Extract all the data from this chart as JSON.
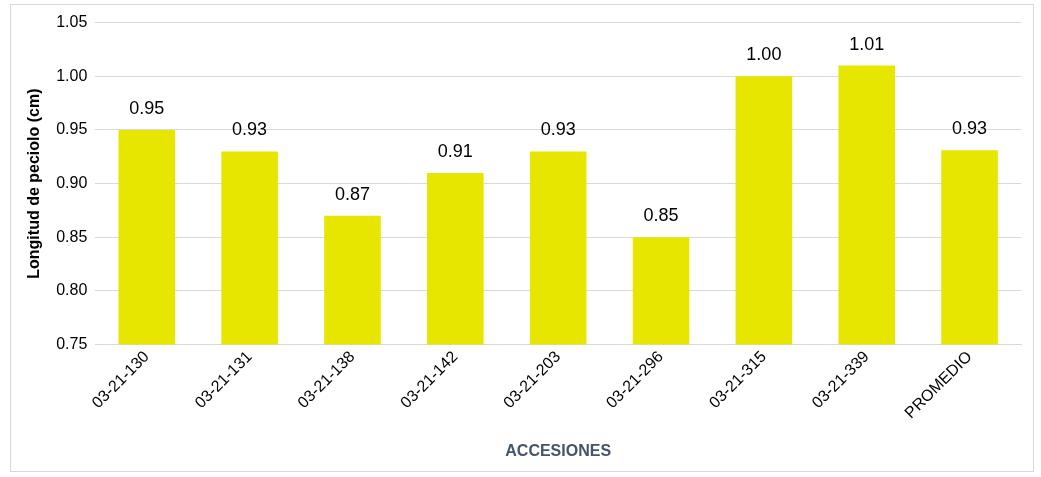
{
  "chart_data": {
    "type": "bar",
    "xlabel": "ACCESIONES",
    "ylabel": "Longitud de peciolo (cm)",
    "categories": [
      "03-21-130",
      "03-21-131",
      "03-21-138",
      "03-21-142",
      "03-21-203",
      "03-21-296",
      "03-21-315",
      "03-21-339",
      "PROMEDIO"
    ],
    "values": [
      0.95,
      0.93,
      0.87,
      0.91,
      0.93,
      0.85,
      1.0,
      1.01,
      0.931
    ],
    "value_labels": [
      "0.95",
      "0.93",
      "0.87",
      "0.91",
      "0.93",
      "0.85",
      "1.00",
      "1.01",
      "0.93"
    ],
    "color": "#e6e600",
    "ylim": [
      0.75,
      1.05
    ],
    "yticks": [
      {
        "value": 0.75,
        "label": "0.75"
      },
      {
        "value": 0.8,
        "label": "0.80"
      },
      {
        "value": 0.85,
        "label": "0.85"
      },
      {
        "value": 0.9,
        "label": "0.90"
      },
      {
        "value": 0.95,
        "label": "0.95"
      },
      {
        "value": 1.0,
        "label": "1.00"
      },
      {
        "value": 1.05,
        "label": "1.05"
      }
    ],
    "grid": "y",
    "legend": false
  }
}
